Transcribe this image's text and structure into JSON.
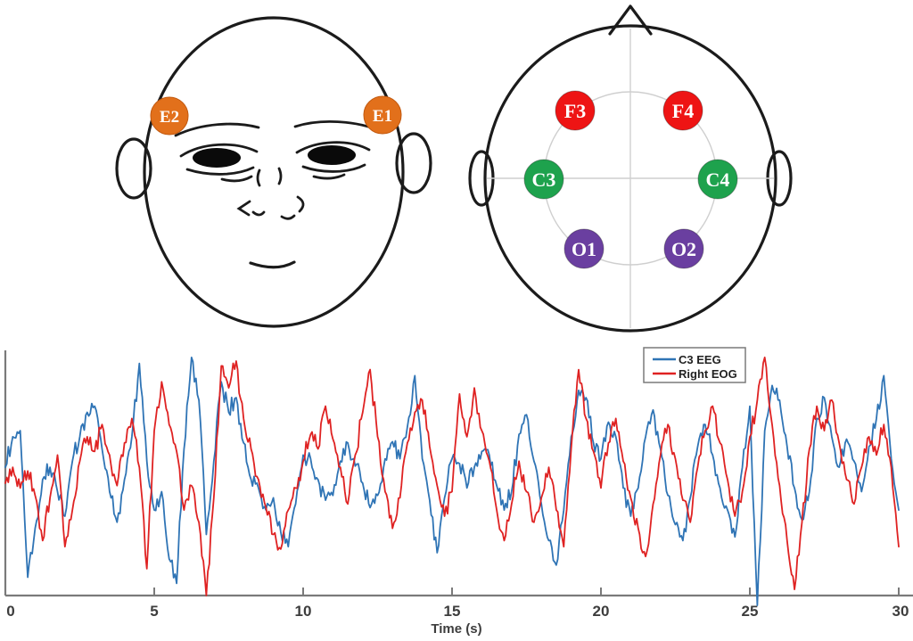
{
  "figure": {
    "background": "#ffffff"
  },
  "face_diagram": {
    "description": "front-view face with EOG electrodes",
    "electrodes": [
      {
        "id": "E2",
        "label": "E2",
        "color": "#E2701B",
        "text_color": "#ffffff"
      },
      {
        "id": "E1",
        "label": "E1",
        "color": "#E2701B",
        "text_color": "#ffffff"
      }
    ]
  },
  "topview_diagram": {
    "description": "top-view head with EEG electrodes",
    "electrodes": [
      {
        "id": "F3",
        "label": "F3",
        "color": "#EE1414"
      },
      {
        "id": "F4",
        "label": "F4",
        "color": "#EE1414"
      },
      {
        "id": "C3",
        "label": "C3",
        "color": "#1EA24D"
      },
      {
        "id": "C4",
        "label": "C4",
        "color": "#1EA24D"
      },
      {
        "id": "O1",
        "label": "O1",
        "color": "#6A3FA0"
      },
      {
        "id": "O2",
        "label": "O2",
        "color": "#6A3FA0"
      }
    ]
  },
  "chart_data": {
    "type": "line",
    "title": "",
    "xlabel": "Time (s)",
    "ylabel": "",
    "xlim": [
      0,
      30
    ],
    "xticks": [
      0,
      5,
      10,
      15,
      20,
      25,
      30
    ],
    "ylim": [
      -1.1,
      1.1
    ],
    "grid": false,
    "x_step": 0.25,
    "legend": {
      "position": "top-right",
      "border": true,
      "entries": [
        {
          "label": "C3 EEG",
          "color": "#2F74B5"
        },
        {
          "label": "Right EOG",
          "color": "#DF2222"
        }
      ]
    },
    "series": [
      {
        "name": "C3 EEG",
        "color": "#2F74B5",
        "values": [
          0.05,
          0.3,
          0.35,
          -0.85,
          -0.45,
          -0.05,
          0.05,
          -0.15,
          -0.35,
          0.1,
          0.3,
          0.5,
          0.55,
          0.2,
          -0.15,
          -0.4,
          -0.05,
          0.3,
          0.9,
          0.1,
          -0.3,
          -0.15,
          -0.7,
          -0.9,
          0.2,
          0.95,
          0.6,
          -0.5,
          0.1,
          0.75,
          0.5,
          0.62,
          0.25,
          -0.05,
          -0.12,
          -0.3,
          -0.2,
          -0.48,
          -0.6,
          -0.25,
          0.15,
          0.12,
          -0.05,
          -0.22,
          -0.18,
          0.1,
          0.25,
          0.06,
          -0.08,
          -0.28,
          -0.18,
          0.12,
          0.26,
          0.12,
          0.38,
          0.8,
          0.12,
          -0.22,
          -0.65,
          -0.2,
          0.12,
          0.08,
          -0.12,
          0.05,
          0.18,
          0.15,
          -0.1,
          -0.3,
          -0.15,
          0.32,
          0.48,
          0.1,
          -0.25,
          -0.55,
          -0.75,
          -0.3,
          0.3,
          0.68,
          0.62,
          0.25,
          0.12,
          0.42,
          0.3,
          -0.12,
          -0.35,
          -0.12,
          0.3,
          0.52,
          0.2,
          -0.18,
          -0.42,
          -0.55,
          -0.2,
          0.22,
          0.4,
          0.15,
          -0.12,
          -0.3,
          -0.52,
          0.05,
          0.55,
          -1.08,
          0.35,
          0.72,
          0.6,
          0.22,
          -0.12,
          -0.38,
          -0.15,
          0.45,
          0.62,
          0.3,
          0.05,
          0.28,
          0.1,
          -0.15,
          0.22,
          0.45,
          0.8,
          0.12,
          -0.3
        ]
      },
      {
        "name": "Right EOG",
        "color": "#DF2222",
        "values": [
          -0.08,
          0.05,
          -0.12,
          0.02,
          -0.18,
          -0.55,
          -0.2,
          0.15,
          -0.6,
          -0.3,
          0.1,
          0.3,
          0.18,
          0.4,
          0.15,
          -0.1,
          0.25,
          0.45,
          0.05,
          -0.78,
          0.35,
          0.75,
          0.4,
          0.18,
          -0.3,
          -0.1,
          -0.4,
          -1.0,
          -0.2,
          0.88,
          0.7,
          0.92,
          0.45,
          0.2,
          -0.05,
          -0.28,
          -0.5,
          -0.62,
          -0.3,
          -0.12,
          0.1,
          0.32,
          0.2,
          0.55,
          0.28,
          0.05,
          -0.25,
          0.15,
          0.5,
          0.85,
          0.3,
          -0.15,
          -0.45,
          -0.2,
          0.25,
          0.5,
          0.6,
          0.22,
          -0.1,
          -0.35,
          -0.15,
          0.65,
          0.3,
          0.7,
          0.35,
          0.1,
          -0.3,
          -0.55,
          -0.25,
          0.1,
          -0.15,
          -0.4,
          -0.2,
          0.05,
          -0.3,
          -0.6,
          0.2,
          0.85,
          0.45,
          0.18,
          -0.12,
          0.25,
          0.45,
          0.1,
          -0.2,
          -0.45,
          -0.68,
          -0.25,
          0.15,
          0.4,
          0.12,
          -0.22,
          -0.4,
          0.05,
          0.35,
          0.55,
          0.25,
          -0.05,
          -0.35,
          -0.15,
          0.3,
          0.6,
          0.95,
          0.4,
          -0.1,
          -0.55,
          -0.95,
          -0.4,
          0.2,
          0.55,
          0.35,
          0.6,
          0.25,
          -0.05,
          -0.25,
          0.05,
          0.3,
          0.15,
          0.4,
          0.05,
          -0.6
        ]
      }
    ]
  }
}
